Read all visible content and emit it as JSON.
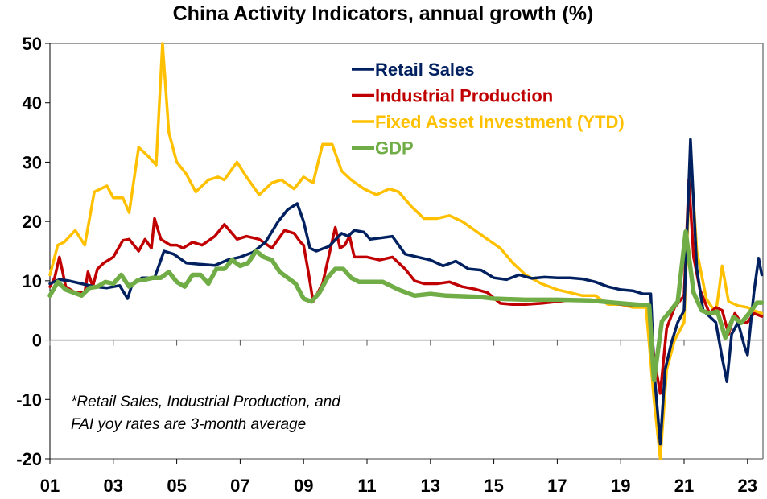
{
  "chart_data": {
    "type": "line",
    "title": "China Activity Indicators, annual growth (%)",
    "xlabel": "",
    "ylabel": "",
    "xlim": [
      2001.0,
      2023.5
    ],
    "ylim": [
      -20,
      50
    ],
    "yticks": [
      -20,
      -10,
      0,
      10,
      20,
      30,
      40,
      50
    ],
    "ytick_labels": [
      "-20",
      "-10",
      "0",
      "10",
      "20",
      "30",
      "40",
      "50"
    ],
    "xticks": [
      2001,
      2003,
      2005,
      2007,
      2009,
      2011,
      2013,
      2015,
      2017,
      2019,
      2021,
      2023
    ],
    "xtick_labels": [
      "01",
      "03",
      "05",
      "07",
      "09",
      "11",
      "13",
      "15",
      "17",
      "19",
      "21",
      "23"
    ],
    "grid": false,
    "legend_position": "top-center",
    "annotation": [
      "*Retail Sales, Industrial Production, and",
      "FAI yoy rates are 3-month average"
    ],
    "series": [
      {
        "name": "Retail Sales",
        "color": "#002060",
        "x": [
          2001.0,
          2001.3,
          2001.6,
          2002.0,
          2002.4,
          2002.8,
          2003.2,
          2003.45,
          2003.6,
          2003.9,
          2004.3,
          2004.6,
          2004.9,
          2005.3,
          2005.7,
          2006.2,
          2006.6,
          2007.0,
          2007.4,
          2007.8,
          2008.2,
          2008.5,
          2008.8,
          2009.0,
          2009.2,
          2009.4,
          2009.8,
          2010.2,
          2010.4,
          2010.6,
          2010.9,
          2011.1,
          2011.4,
          2011.8,
          2012.2,
          2012.6,
          2013.0,
          2013.4,
          2013.8,
          2014.2,
          2014.6,
          2015.0,
          2015.4,
          2015.8,
          2016.2,
          2016.6,
          2017.0,
          2017.4,
          2017.8,
          2018.2,
          2018.6,
          2019.0,
          2019.4,
          2019.7,
          2019.95,
          2020.05,
          2020.25,
          2020.4,
          2020.6,
          2020.8,
          2021.0,
          2021.2,
          2021.4,
          2021.6,
          2021.8,
          2022.0,
          2022.2,
          2022.35,
          2022.5,
          2022.7,
          2022.9,
          2023.0,
          2023.2,
          2023.35,
          2023.45
        ],
        "y": [
          9.5,
          10.2,
          10.0,
          9.5,
          9.0,
          8.8,
          9.2,
          7.0,
          9.5,
          10.5,
          10.5,
          15.0,
          14.5,
          13.0,
          12.8,
          12.6,
          13.5,
          14.0,
          14.8,
          16.5,
          20.0,
          22.0,
          23.0,
          20.0,
          15.5,
          15.0,
          15.8,
          18.0,
          17.5,
          18.5,
          18.2,
          17.0,
          17.2,
          17.5,
          14.5,
          14.0,
          13.5,
          12.5,
          13.3,
          12.0,
          11.8,
          10.5,
          10.2,
          11.0,
          10.4,
          10.6,
          10.5,
          10.5,
          10.3,
          9.8,
          9.0,
          8.5,
          8.3,
          7.8,
          7.8,
          -5.0,
          -17.5,
          -5.0,
          -0.5,
          3.0,
          5.0,
          33.8,
          12.0,
          5.0,
          4.0,
          3.0,
          -3.0,
          -7.0,
          1.0,
          3.0,
          -1.0,
          -2.5,
          8.0,
          13.8,
          11.0
        ]
      },
      {
        "name": "Industrial Production",
        "color": "#C00000",
        "x": [
          2001.0,
          2001.15,
          2001.3,
          2001.5,
          2001.8,
          2002.1,
          2002.2,
          2002.35,
          2002.5,
          2002.7,
          2003.0,
          2003.3,
          2003.5,
          2003.8,
          2004.0,
          2004.2,
          2004.3,
          2004.5,
          2004.8,
          2005.0,
          2005.2,
          2005.5,
          2005.8,
          2006.2,
          2006.5,
          2006.9,
          2007.2,
          2007.6,
          2008.0,
          2008.4,
          2008.7,
          2008.9,
          2009.0,
          2009.15,
          2009.3,
          2009.6,
          2010.0,
          2010.15,
          2010.3,
          2010.45,
          2010.6,
          2011.0,
          2011.4,
          2011.8,
          2012.2,
          2012.5,
          2012.8,
          2013.2,
          2013.6,
          2014.0,
          2014.4,
          2014.8,
          2015.2,
          2015.6,
          2016.0,
          2016.5,
          2017.0,
          2017.5,
          2018.0,
          2018.5,
          2019.0,
          2019.5,
          2019.9,
          2020.05,
          2020.25,
          2020.45,
          2020.7,
          2021.0,
          2021.15,
          2021.3,
          2021.5,
          2021.8,
          2022.0,
          2022.2,
          2022.4,
          2022.6,
          2022.8,
          2023.0,
          2023.2,
          2023.45
        ],
        "y": [
          9.0,
          10.5,
          14.0,
          9.0,
          8.0,
          8.0,
          11.5,
          9.0,
          12.0,
          13.0,
          14.0,
          16.8,
          17.0,
          15.0,
          17.0,
          15.5,
          20.5,
          17.0,
          16.0,
          16.0,
          15.5,
          16.5,
          16.0,
          17.5,
          19.5,
          17.0,
          17.5,
          17.0,
          15.5,
          18.5,
          18.0,
          16.5,
          16.0,
          11.5,
          6.5,
          9.5,
          19.0,
          15.5,
          16.0,
          17.5,
          14.0,
          14.0,
          13.5,
          14.0,
          12.0,
          10.0,
          9.5,
          9.5,
          9.8,
          9.0,
          8.6,
          8.0,
          6.2,
          6.0,
          6.0,
          6.2,
          6.5,
          6.8,
          6.8,
          6.5,
          6.0,
          5.8,
          6.0,
          -3.0,
          -9.0,
          2.0,
          5.5,
          7.5,
          27.0,
          14.0,
          8.5,
          4.5,
          5.5,
          5.0,
          1.0,
          4.5,
          3.0,
          3.0,
          4.5,
          4.0
        ]
      },
      {
        "name": "Fixed Asset Investment (YTD)",
        "color": "#FFC000",
        "x": [
          2001.0,
          2001.25,
          2001.45,
          2001.8,
          2002.1,
          2002.4,
          2002.8,
          2003.0,
          2003.3,
          2003.5,
          2003.8,
          2004.1,
          2004.35,
          2004.55,
          2004.75,
          2005.0,
          2005.3,
          2005.6,
          2006.0,
          2006.3,
          2006.5,
          2006.9,
          2007.2,
          2007.6,
          2008.0,
          2008.3,
          2008.7,
          2009.0,
          2009.3,
          2009.6,
          2009.9,
          2010.2,
          2010.5,
          2010.9,
          2011.3,
          2011.7,
          2012.0,
          2012.4,
          2012.8,
          2013.2,
          2013.6,
          2014.0,
          2014.4,
          2014.8,
          2015.2,
          2015.6,
          2016.0,
          2016.5,
          2017.0,
          2017.4,
          2017.8,
          2018.2,
          2018.6,
          2019.0,
          2019.4,
          2019.8,
          2020.05,
          2020.25,
          2020.45,
          2020.7,
          2021.0,
          2021.2,
          2021.4,
          2021.7,
          2022.0,
          2022.2,
          2022.4,
          2022.7,
          2023.0,
          2023.2,
          2023.45
        ],
        "y": [
          11.0,
          16.0,
          16.5,
          18.5,
          16.0,
          25.0,
          26.0,
          24.0,
          24.0,
          21.5,
          32.5,
          31.0,
          29.5,
          50.0,
          35.0,
          30.0,
          28.0,
          25.0,
          27.0,
          27.5,
          27.0,
          30.0,
          27.5,
          24.5,
          26.5,
          27.0,
          25.5,
          27.5,
          26.5,
          33.0,
          33.0,
          28.5,
          27.0,
          25.5,
          24.5,
          25.5,
          25.0,
          22.5,
          20.5,
          20.5,
          21.0,
          20.0,
          18.5,
          17.0,
          15.5,
          13.0,
          11.0,
          9.5,
          8.5,
          8.0,
          7.5,
          7.5,
          6.0,
          6.0,
          5.5,
          5.5,
          -10.0,
          -20.0,
          -5.0,
          0.0,
          3.0,
          31.5,
          15.0,
          7.0,
          4.5,
          12.5,
          6.5,
          5.8,
          5.5,
          5.0,
          4.5
        ]
      },
      {
        "name": "GDP",
        "color": "#70AD47",
        "x": [
          2001.0,
          2001.25,
          2001.5,
          2001.75,
          2002.0,
          2002.25,
          2002.5,
          2002.75,
          2003.0,
          2003.25,
          2003.5,
          2003.75,
          2004.0,
          2004.25,
          2004.5,
          2004.75,
          2005.0,
          2005.25,
          2005.5,
          2005.75,
          2006.0,
          2006.25,
          2006.5,
          2006.75,
          2007.0,
          2007.25,
          2007.5,
          2007.75,
          2008.0,
          2008.25,
          2008.5,
          2008.75,
          2009.0,
          2009.25,
          2009.5,
          2009.75,
          2010.0,
          2010.25,
          2010.5,
          2010.75,
          2011.0,
          2011.5,
          2012.0,
          2012.5,
          2013.0,
          2013.5,
          2014.0,
          2014.5,
          2015.0,
          2015.5,
          2016.0,
          2017.0,
          2018.0,
          2019.0,
          2019.9,
          2020.05,
          2020.3,
          2020.55,
          2020.8,
          2021.05,
          2021.3,
          2021.55,
          2021.8,
          2022.05,
          2022.3,
          2022.55,
          2022.8,
          2023.05,
          2023.3,
          2023.45
        ],
        "y": [
          7.5,
          9.8,
          8.5,
          8.0,
          7.5,
          8.8,
          9.0,
          9.8,
          9.5,
          11.0,
          9.0,
          10.0,
          10.2,
          10.5,
          10.5,
          11.5,
          9.8,
          9.0,
          11.0,
          11.0,
          9.5,
          12.0,
          12.0,
          13.5,
          12.5,
          13.0,
          15.0,
          14.0,
          13.5,
          11.5,
          10.5,
          9.5,
          7.0,
          6.5,
          8.0,
          10.5,
          12.0,
          12.0,
          10.5,
          9.8,
          9.8,
          9.8,
          8.5,
          7.5,
          7.8,
          7.5,
          7.4,
          7.3,
          7.0,
          6.9,
          6.8,
          6.8,
          6.7,
          6.2,
          5.8,
          -6.8,
          3.2,
          4.8,
          6.5,
          18.3,
          8.0,
          5.0,
          4.5,
          4.8,
          0.4,
          3.9,
          2.9,
          4.5,
          6.3,
          6.3
        ]
      }
    ]
  }
}
